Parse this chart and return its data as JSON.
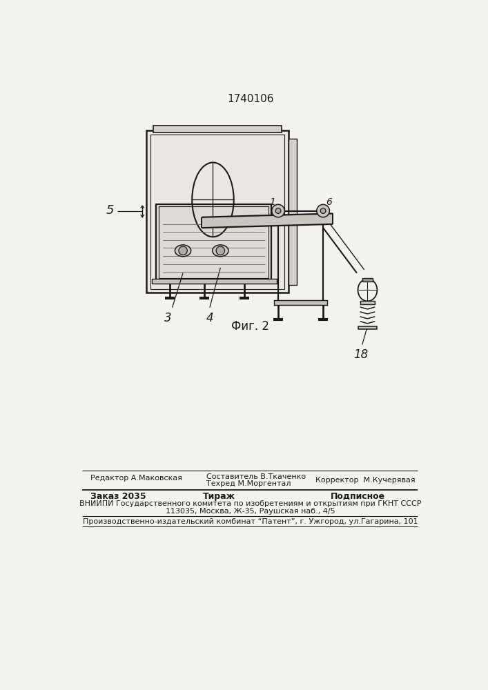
{
  "title": "1740106",
  "fig_label": "Фиг. 2",
  "bg_color": "#f5f3f0",
  "line_color": "#1a1a1a",
  "label_5": "5",
  "label_3": "3",
  "label_4": "4",
  "label_18": "18",
  "label_1": "1",
  "label_6": "6",
  "footer_left": "Редактор А.Маковская",
  "footer_center1": "Составитель В.Ткаченко",
  "footer_center2": "Техред М.Моргентал",
  "footer_right": "Корректор  М.Кучерявая",
  "footer_order": "Заказ 2035",
  "footer_tirazh": "Тираж",
  "footer_podpisnoe": "Подписное",
  "footer_vniip": "ВНИИПИ Государственного комитета по изобретениям и открытиям при ГКНТ СССР",
  "footer_addr": "113035, Москва, Ж-35, Раушская наб., 4/5",
  "footer_prod": "Производственно-издательский комбинат “Патент”, г. Ужгород, ул.Гагарина, 101"
}
